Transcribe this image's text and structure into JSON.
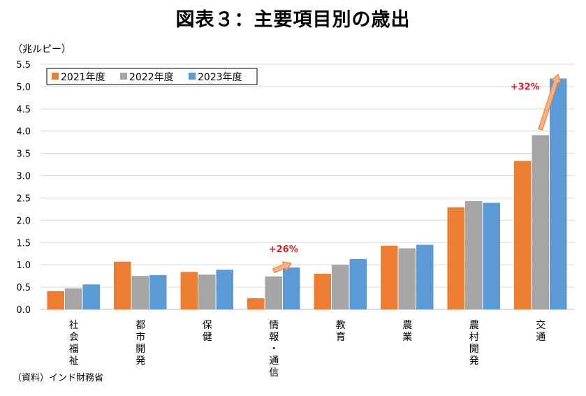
{
  "header": {
    "title": "図表３：主要項目別の歳出",
    "unit": "（兆ルピー）"
  },
  "footer": {
    "source": "（資料）インド財務省"
  },
  "colors": {
    "series": [
      "#ED7D31",
      "#A5A5A5",
      "#5B9BD5"
    ],
    "annotation": "#E02020",
    "arrow_fill": "#F4B183",
    "arrow_stroke": "#ED7D31",
    "grid": "#D9D9D9"
  },
  "chart_data": {
    "type": "bar",
    "title": "図表３：主要項目別の歳出",
    "ylabel": "（兆ルピー）",
    "ylim": [
      0,
      5.5
    ],
    "yticks": [
      "0.0",
      "0.5",
      "1.0",
      "1.5",
      "2.0",
      "2.5",
      "3.0",
      "3.5",
      "4.0",
      "4.5",
      "5.0",
      "5.5"
    ],
    "grid": true,
    "legend_position": "top-left",
    "categories": [
      "社会福祉",
      "都市開発",
      "保健",
      "情報・通信",
      "教育",
      "農業",
      "農村開発",
      "交通"
    ],
    "series": [
      {
        "name": "2021年度",
        "values": [
          0.41,
          1.07,
          0.84,
          0.25,
          0.8,
          1.43,
          2.29,
          3.33
        ]
      },
      {
        "name": "2022年度",
        "values": [
          0.47,
          0.75,
          0.78,
          0.74,
          1.0,
          1.37,
          2.43,
          3.91
        ]
      },
      {
        "name": "2023年度",
        "values": [
          0.56,
          0.77,
          0.89,
          0.94,
          1.13,
          1.45,
          2.39,
          5.18
        ]
      }
    ],
    "annotations": [
      {
        "category": "情報・通信",
        "text": "+26%"
      },
      {
        "category": "交通",
        "text": "+32%"
      }
    ]
  }
}
